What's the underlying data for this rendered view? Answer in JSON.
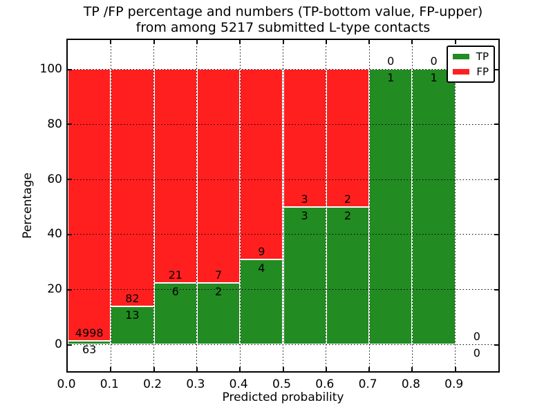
{
  "chart_data": {
    "type": "bar",
    "stacked": true,
    "title_line1": "TP /FP percentage and numbers (TP-bottom value, FP-upper)",
    "title_line2": "from among 5217 submitted L-type contacts",
    "xlabel": "Predicted probability",
    "ylabel": "Percentage",
    "xlim": [
      0.0,
      1.0
    ],
    "ylim": [
      -10,
      110
    ],
    "x_ticks": [
      0.0,
      0.1,
      0.2,
      0.3,
      0.4,
      0.5,
      0.6,
      0.7,
      0.8,
      0.9
    ],
    "y_ticks": [
      0,
      20,
      40,
      60,
      80,
      100
    ],
    "grid": "dotted",
    "legend_position": "upper right",
    "series": [
      {
        "name": "TP",
        "color": "#228b22"
      },
      {
        "name": "FP",
        "color": "#ff1f1f"
      }
    ],
    "bins": [
      {
        "range": [
          0.0,
          0.1
        ],
        "tp": 63,
        "fp": 4998,
        "tp_percent": 1.24
      },
      {
        "range": [
          0.1,
          0.2
        ],
        "tp": 13,
        "fp": 82,
        "tp_percent": 13.68
      },
      {
        "range": [
          0.2,
          0.3
        ],
        "tp": 6,
        "fp": 21,
        "tp_percent": 22.22
      },
      {
        "range": [
          0.3,
          0.4
        ],
        "tp": 2,
        "fp": 7,
        "tp_percent": 22.22
      },
      {
        "range": [
          0.4,
          0.5
        ],
        "tp": 4,
        "fp": 9,
        "tp_percent": 30.77
      },
      {
        "range": [
          0.5,
          0.6
        ],
        "tp": 3,
        "fp": 3,
        "tp_percent": 50.0
      },
      {
        "range": [
          0.6,
          0.7
        ],
        "tp": 2,
        "fp": 2,
        "tp_percent": 50.0
      },
      {
        "range": [
          0.7,
          0.8
        ],
        "tp": 1,
        "fp": 0,
        "tp_percent": 100.0
      },
      {
        "range": [
          0.8,
          0.9
        ],
        "tp": 1,
        "fp": 0,
        "tp_percent": 100.0
      },
      {
        "range": [
          0.9,
          1.0
        ],
        "tp": 0,
        "fp": 0,
        "tp_percent": null
      }
    ]
  }
}
